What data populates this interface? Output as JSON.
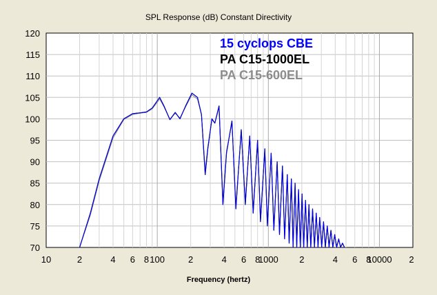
{
  "chart_data": {
    "type": "line",
    "title": "SPL Response (dB)   Constant Directivity",
    "xlabel": "Frequency (hertz)",
    "ylabel": "",
    "x_scale": "log",
    "xlim": [
      10,
      20000
    ],
    "ylim": [
      70,
      120
    ],
    "y_ticks": [
      70,
      75,
      80,
      85,
      90,
      95,
      100,
      105,
      110,
      115,
      120
    ],
    "x_tick_labels": [
      {
        "value": 10,
        "label": "10"
      },
      {
        "value": 20,
        "label": "2"
      },
      {
        "value": 40,
        "label": "4"
      },
      {
        "value": 60,
        "label": "6"
      },
      {
        "value": 80,
        "label": "8"
      },
      {
        "value": 100,
        "label": "100"
      },
      {
        "value": 200,
        "label": "2"
      },
      {
        "value": 400,
        "label": "4"
      },
      {
        "value": 600,
        "label": "6"
      },
      {
        "value": 800,
        "label": "8"
      },
      {
        "value": 1000,
        "label": "1000"
      },
      {
        "value": 2000,
        "label": "2"
      },
      {
        "value": 4000,
        "label": "4"
      },
      {
        "value": 6000,
        "label": "6"
      },
      {
        "value": 8000,
        "label": "8"
      },
      {
        "value": 10000,
        "label": "10000"
      },
      {
        "value": 20000,
        "label": "2"
      }
    ],
    "grid": true,
    "legend_position": "top-center",
    "series": [
      {
        "name": "15 cyclops CBE",
        "color": "#0000ff",
        "points": [
          [
            20,
            70
          ],
          [
            25,
            78
          ],
          [
            30,
            86
          ],
          [
            40,
            96
          ],
          [
            50,
            100
          ],
          [
            60,
            101.2
          ],
          [
            70,
            101.4
          ],
          [
            80,
            101.6
          ],
          [
            90,
            102.5
          ],
          [
            105,
            105
          ],
          [
            115,
            103
          ],
          [
            130,
            99.8
          ],
          [
            145,
            101.5
          ],
          [
            160,
            100
          ],
          [
            180,
            103
          ],
          [
            205,
            106
          ],
          [
            230,
            105
          ],
          [
            250,
            101
          ],
          [
            270,
            87
          ],
          [
            285,
            93
          ],
          [
            310,
            100
          ],
          [
            330,
            99
          ],
          [
            360,
            103
          ],
          [
            390,
            80
          ],
          [
            420,
            92
          ],
          [
            470,
            99.5
          ],
          [
            510,
            79
          ],
          [
            570,
            97.5
          ],
          [
            620,
            80
          ],
          [
            680,
            96
          ],
          [
            730,
            78
          ],
          [
            800,
            95
          ],
          [
            850,
            76
          ],
          [
            930,
            93
          ],
          [
            980,
            75
          ],
          [
            1060,
            92
          ],
          [
            1120,
            74
          ],
          [
            1200,
            90
          ],
          [
            1260,
            73
          ],
          [
            1340,
            89
          ],
          [
            1400,
            72
          ],
          [
            1480,
            87
          ],
          [
            1540,
            71
          ],
          [
            1610,
            86
          ],
          [
            1670,
            70
          ],
          [
            1740,
            85
          ],
          [
            1800,
            70
          ],
          [
            1870,
            83.5
          ],
          [
            1940,
            70
          ],
          [
            2010,
            82.5
          ],
          [
            2080,
            70
          ],
          [
            2160,
            81
          ],
          [
            2240,
            70
          ],
          [
            2320,
            80
          ],
          [
            2410,
            70
          ],
          [
            2500,
            79
          ],
          [
            2600,
            70
          ],
          [
            2700,
            78
          ],
          [
            2800,
            70
          ],
          [
            2900,
            77
          ],
          [
            3020,
            70
          ],
          [
            3140,
            76
          ],
          [
            3260,
            70
          ],
          [
            3390,
            75
          ],
          [
            3520,
            70
          ],
          [
            3660,
            74
          ],
          [
            3810,
            70
          ],
          [
            3960,
            73
          ],
          [
            4120,
            70
          ],
          [
            4300,
            72
          ],
          [
            4470,
            70
          ],
          [
            4650,
            71
          ],
          [
            4850,
            70
          ]
        ]
      },
      {
        "name": "PA C15-1000EL",
        "color": "#000000",
        "points": [
          [
            20,
            70
          ],
          [
            25,
            78
          ],
          [
            30,
            86
          ],
          [
            40,
            96
          ],
          [
            50,
            100
          ],
          [
            60,
            101.2
          ],
          [
            70,
            101.4
          ],
          [
            80,
            101.6
          ],
          [
            90,
            102.5
          ],
          [
            105,
            105
          ],
          [
            115,
            103
          ],
          [
            130,
            99.8
          ],
          [
            145,
            101.5
          ],
          [
            160,
            100
          ],
          [
            180,
            103
          ],
          [
            205,
            106
          ],
          [
            230,
            105
          ],
          [
            250,
            101
          ],
          [
            270,
            87
          ],
          [
            285,
            93
          ],
          [
            310,
            100
          ],
          [
            330,
            99
          ],
          [
            360,
            103
          ],
          [
            390,
            80
          ],
          [
            420,
            92
          ],
          [
            470,
            99.5
          ],
          [
            510,
            79
          ],
          [
            570,
            97.5
          ],
          [
            620,
            80
          ],
          [
            680,
            96
          ],
          [
            730,
            78
          ],
          [
            800,
            95
          ],
          [
            850,
            76
          ],
          [
            930,
            93
          ],
          [
            980,
            75
          ],
          [
            1060,
            92
          ],
          [
            1120,
            74
          ],
          [
            1200,
            90
          ],
          [
            1260,
            73
          ],
          [
            1340,
            89
          ],
          [
            1400,
            72
          ],
          [
            1480,
            87
          ],
          [
            1540,
            71
          ],
          [
            1610,
            86
          ],
          [
            1670,
            70
          ],
          [
            1740,
            85
          ],
          [
            1800,
            70
          ],
          [
            1870,
            83.5
          ],
          [
            1940,
            70
          ],
          [
            2010,
            82.5
          ],
          [
            2080,
            70
          ],
          [
            2160,
            81
          ],
          [
            2240,
            70
          ],
          [
            2320,
            80
          ],
          [
            2410,
            70
          ],
          [
            2500,
            79
          ],
          [
            2600,
            70
          ],
          [
            2700,
            78
          ],
          [
            2800,
            70
          ],
          [
            2900,
            77
          ],
          [
            3020,
            70
          ],
          [
            3140,
            76
          ],
          [
            3260,
            70
          ],
          [
            3390,
            75
          ],
          [
            3520,
            70
          ],
          [
            3660,
            74
          ],
          [
            3810,
            70
          ],
          [
            3960,
            73
          ],
          [
            4120,
            70
          ],
          [
            4300,
            72
          ],
          [
            4470,
            70
          ],
          [
            4650,
            71
          ],
          [
            4850,
            70
          ]
        ]
      },
      {
        "name": "PA C15-600EL",
        "color": "#8c8c8c",
        "points": [
          [
            20,
            70
          ],
          [
            25,
            77.5
          ],
          [
            30,
            85.5
          ],
          [
            40,
            95.5
          ],
          [
            50,
            99.8
          ],
          [
            60,
            101
          ],
          [
            70,
            101.3
          ],
          [
            80,
            101.5
          ],
          [
            90,
            102.3
          ],
          [
            105,
            104.6
          ],
          [
            115,
            102.8
          ],
          [
            130,
            99.9
          ],
          [
            145,
            101.3
          ],
          [
            160,
            100.2
          ],
          [
            180,
            102.8
          ],
          [
            205,
            105.6
          ],
          [
            230,
            104.6
          ],
          [
            250,
            101
          ],
          [
            270,
            88
          ],
          [
            285,
            93.5
          ],
          [
            310,
            99.8
          ],
          [
            330,
            99
          ],
          [
            360,
            102.6
          ],
          [
            390,
            81
          ],
          [
            420,
            92.5
          ],
          [
            470,
            99
          ],
          [
            510,
            80
          ],
          [
            570,
            97
          ],
          [
            620,
            81
          ],
          [
            680,
            95.5
          ],
          [
            730,
            79
          ],
          [
            800,
            94.6
          ],
          [
            850,
            77
          ],
          [
            930,
            92.6
          ],
          [
            980,
            76
          ],
          [
            1060,
            91.5
          ],
          [
            1120,
            75
          ],
          [
            1200,
            89.6
          ],
          [
            1260,
            74
          ],
          [
            1340,
            88.6
          ],
          [
            1400,
            73
          ],
          [
            1480,
            86.6
          ],
          [
            1540,
            72
          ],
          [
            1610,
            85.6
          ],
          [
            1670,
            71
          ],
          [
            1740,
            84.6
          ],
          [
            1800,
            71
          ],
          [
            1870,
            83
          ],
          [
            1940,
            71
          ],
          [
            2010,
            82
          ],
          [
            2080,
            71
          ],
          [
            2160,
            80.6
          ],
          [
            2240,
            71
          ],
          [
            2320,
            79.6
          ],
          [
            2410,
            71
          ],
          [
            2500,
            78.6
          ],
          [
            2600,
            71
          ],
          [
            2700,
            77.6
          ],
          [
            2800,
            71
          ],
          [
            2900,
            76.6
          ],
          [
            3020,
            71
          ],
          [
            3140,
            75.6
          ],
          [
            3260,
            71
          ],
          [
            3390,
            74.6
          ],
          [
            3520,
            71
          ],
          [
            3660,
            73.6
          ],
          [
            3810,
            70.5
          ],
          [
            3960,
            72.6
          ],
          [
            4120,
            70.5
          ],
          [
            4300,
            71.6
          ],
          [
            4470,
            70.3
          ],
          [
            4650,
            70.8
          ],
          [
            4850,
            70
          ]
        ]
      }
    ]
  }
}
